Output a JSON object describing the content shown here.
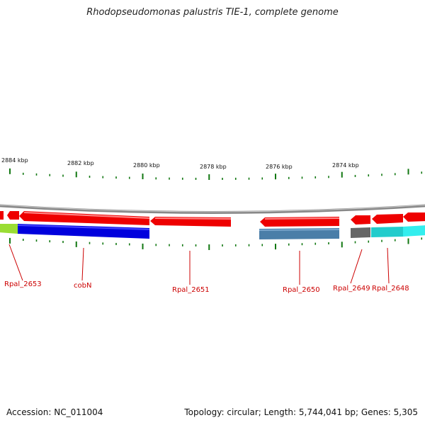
{
  "title": "Rhodopseudomonas palustris TIE-1, complete genome",
  "footer": {
    "accession": "Accession: NC_011004",
    "summary": "Topology: circular; Length: 5,744,041 bp; Genes: 5,305"
  },
  "scale": {
    "labels": [
      "2884 kbp",
      "2882 kbp",
      "2880 kbp",
      "2878 kbp",
      "2876 kbp",
      "2874 kbp"
    ]
  },
  "genes": [
    {
      "name": "Rpal_2653"
    },
    {
      "name": "cobN"
    },
    {
      "name": "Rpal_2651"
    },
    {
      "name": "Rpal_2650"
    },
    {
      "name": "Rpal_2649"
    },
    {
      "name": "Rpal_2648"
    }
  ],
  "colors": {
    "gene_arrow": "#ee0000",
    "cds_blue": "#0000dd",
    "cds_steel": "#4a7ea8",
    "cds_gray": "#666666",
    "cds_cyan": "#22cccc",
    "cds_lime": "#99dd33",
    "tick": "#117711",
    "label": "#cc0000",
    "backbone": "#888888"
  }
}
